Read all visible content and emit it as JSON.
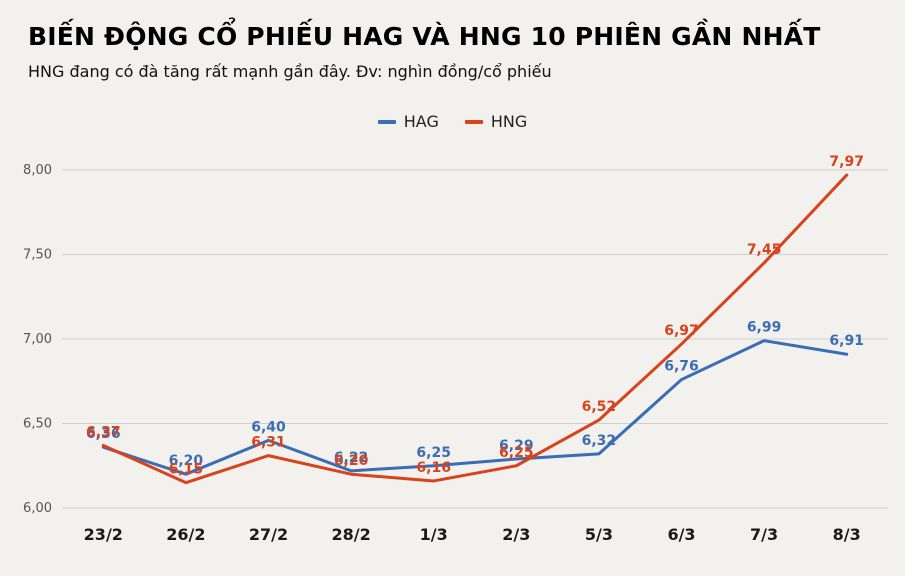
{
  "header": {
    "title": "BIẾN ĐỘNG CỔ PHIẾU HAG VÀ HNG 10 PHIÊN GẦN NHẤT",
    "subtitle": "HNG đang có đà tăng rất mạnh gần đây. Đv: nghìn đồng/cổ phiếu"
  },
  "chart_data": {
    "type": "line",
    "categories": [
      "23/2",
      "26/2",
      "27/2",
      "28/2",
      "1/3",
      "2/3",
      "5/3",
      "6/3",
      "7/3",
      "8/3"
    ],
    "series": [
      {
        "name": "HAG",
        "color": "#3a6db3",
        "values": [
          6.36,
          6.2,
          6.4,
          6.22,
          6.25,
          6.29,
          6.32,
          6.76,
          6.99,
          6.91
        ]
      },
      {
        "name": "HNG",
        "color": "#d8431c",
        "values": [
          6.37,
          6.15,
          6.31,
          6.2,
          6.16,
          6.25,
          6.52,
          6.97,
          7.45,
          7.97
        ]
      }
    ],
    "ylim": [
      6.0,
      8.0
    ],
    "yticks": [
      6.0,
      6.5,
      7.0,
      7.5,
      8.0
    ],
    "ytick_labels": [
      "6,00",
      "6,50",
      "7,00",
      "7,50",
      "8,00"
    ],
    "grid": true,
    "legend_position": "top",
    "decimal_separator": ","
  },
  "colors": {
    "background": "#f2f1ee",
    "gridline": "#cfcfcf",
    "hag_blue": "#3a6db3",
    "hng_red": "#d8431c"
  }
}
